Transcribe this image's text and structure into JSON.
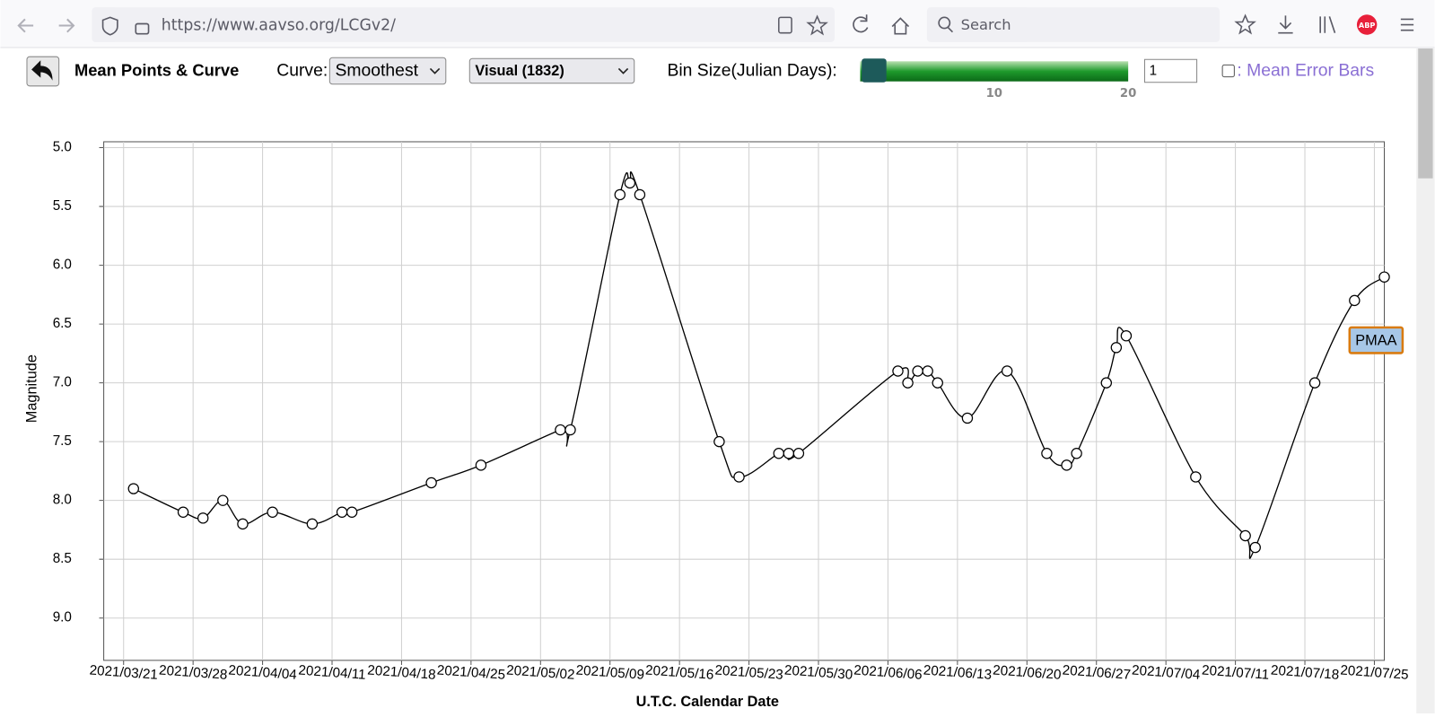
{
  "browser": {
    "url": "https://www.aavso.org/LCGv2/",
    "search": "Search",
    "addon": "ABP"
  },
  "toolbar": {
    "title": "Mean Points & Curve",
    "curve_label": "Curve:",
    "curve": "Smoothest",
    "band": "Visual (1832)",
    "bin_label": "Bin Size(Julian Days):",
    "bin_ticks": [
      10,
      20
    ],
    "bin_value": 1,
    "error_bars": ": Mean Error Bars"
  },
  "chart_data": {
    "type": "line",
    "x_label": "U.T.C. Calendar Date",
    "y_label": "Magnitude",
    "label": "PMAA",
    "color": "#000000",
    "grid": true,
    "y_inverted": true,
    "xlim": [
      "2021/03/19",
      "2021/07/26"
    ],
    "xticks": [
      "2021/03/21",
      "2021/03/28",
      "2021/04/04",
      "2021/04/11",
      "2021/04/18",
      "2021/04/25",
      "2021/05/02",
      "2021/05/09",
      "2021/05/16",
      "2021/05/23",
      "2021/05/30",
      "2021/06/06",
      "2021/06/13",
      "2021/06/20",
      "2021/06/27",
      "2021/07/04",
      "2021/07/11",
      "2021/07/18",
      "2021/07/25"
    ],
    "ylim": [
      4.95,
      9.36
    ],
    "yticks": [
      {
        "value": 5,
        "label": "5.0"
      },
      {
        "value": 5.5,
        "label": "5.5"
      },
      {
        "value": 6,
        "label": "6.0"
      },
      {
        "value": 6.5,
        "label": "6.5"
      },
      {
        "value": 7,
        "label": "7.0"
      },
      {
        "value": 7.5,
        "label": "7.5"
      },
      {
        "value": 8,
        "label": "8.0"
      },
      {
        "value": 8.5,
        "label": "8.5"
      },
      {
        "value": 9,
        "label": "9.0"
      }
    ],
    "x": [
      "2021/03/22",
      "2021/03/27",
      "2021/03/29",
      "2021/03/31",
      "2021/04/02",
      "2021/04/05",
      "2021/04/09",
      "2021/04/12",
      "2021/04/13",
      "2021/04/21",
      "2021/04/26",
      "2021/05/04",
      "2021/05/05",
      "2021/05/10",
      "2021/05/11",
      "2021/05/12",
      "2021/05/20",
      "2021/05/22",
      "2021/05/26",
      "2021/05/27",
      "2021/05/28",
      "2021/06/07",
      "2021/06/08",
      "2021/06/09",
      "2021/06/10",
      "2021/06/11",
      "2021/06/14",
      "2021/06/18",
      "2021/06/22",
      "2021/06/24",
      "2021/06/25",
      "2021/06/28",
      "2021/06/29",
      "2021/06/30",
      "2021/07/07",
      "2021/07/12",
      "2021/07/13",
      "2021/07/19",
      "2021/07/23",
      "2021/07/26"
    ],
    "values": [
      7.9,
      8.1,
      8.15,
      8.0,
      8.2,
      8.1,
      8.2,
      8.1,
      8.1,
      7.85,
      7.7,
      7.4,
      7.4,
      5.4,
      5.3,
      5.4,
      7.5,
      7.8,
      7.6,
      7.6,
      7.6,
      6.9,
      7.0,
      6.9,
      6.9,
      7.0,
      7.3,
      6.9,
      7.6,
      7.7,
      7.6,
      7.0,
      6.7,
      6.6,
      7.8,
      8.3,
      8.4,
      7.0,
      6.3,
      6.1
    ]
  }
}
